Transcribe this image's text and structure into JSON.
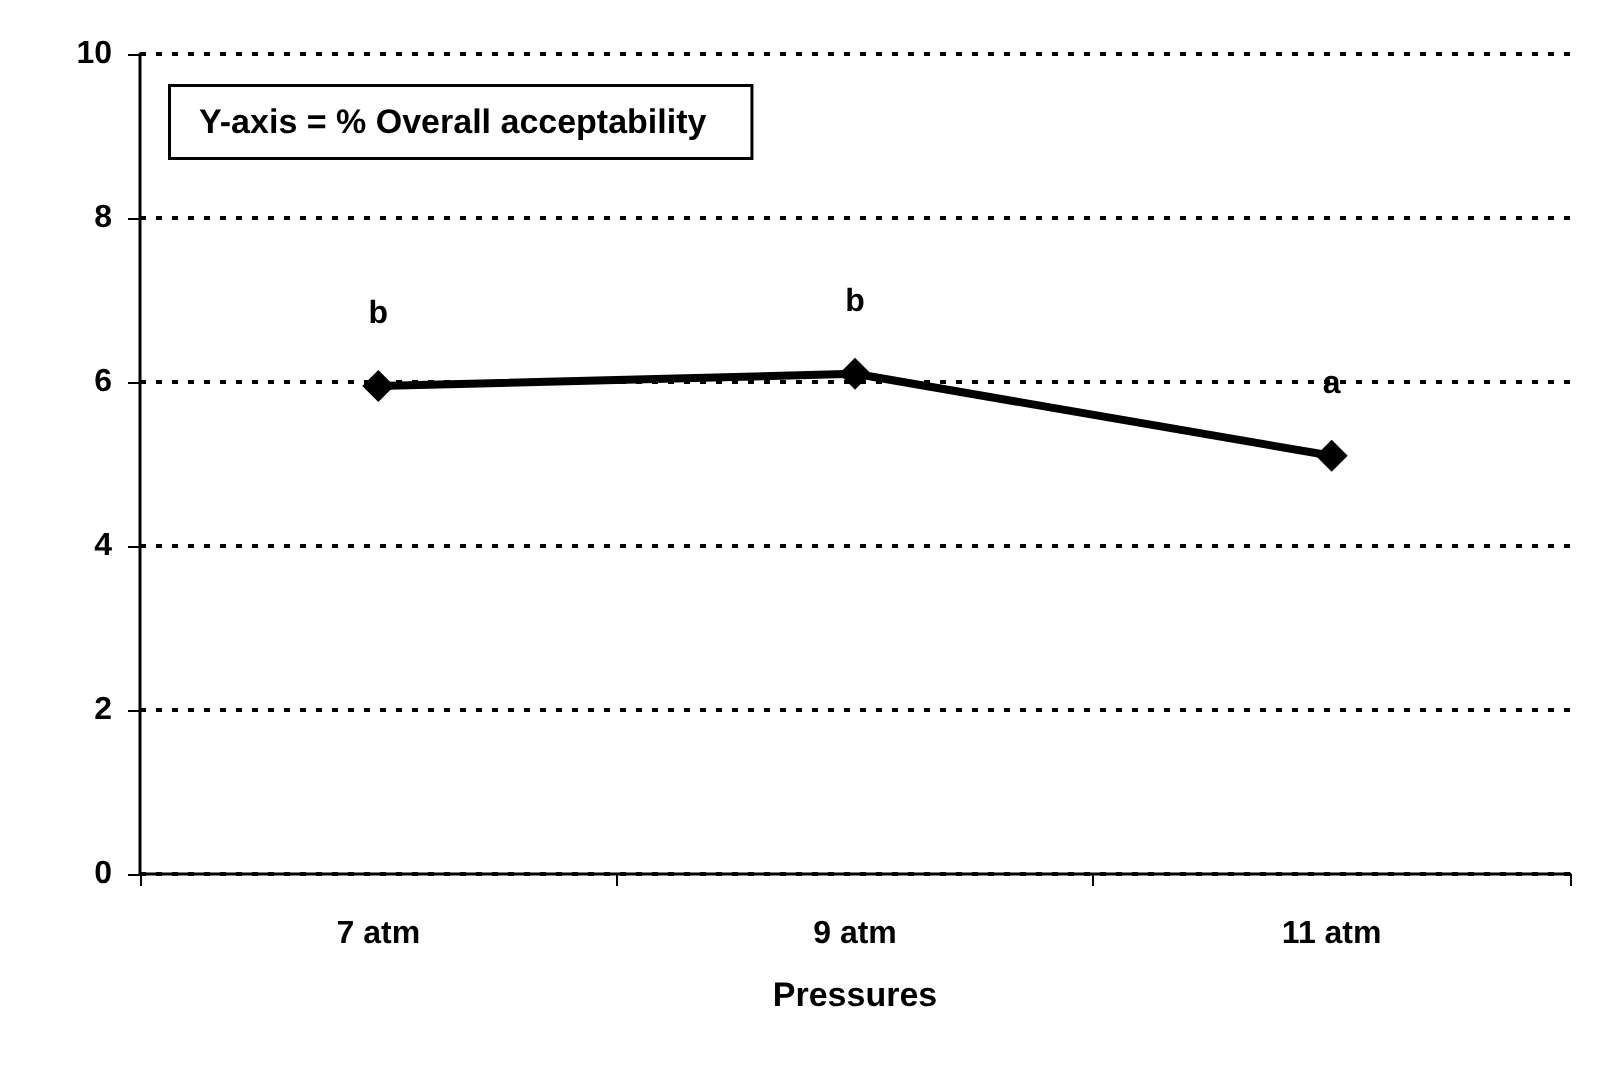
{
  "chart_data": {
    "type": "line",
    "xlabel": "Pressures",
    "categories": [
      "7 atm",
      "9 atm",
      "11 atm"
    ],
    "series": [
      {
        "color": "#000000",
        "values": [
          5.95,
          6.1,
          5.1
        ]
      }
    ],
    "ylim": [
      0,
      10
    ],
    "yticks": [
      0,
      2,
      4,
      6,
      8,
      10
    ],
    "grid": "y",
    "marker": "diamond",
    "line_style": "solid",
    "annotations": [
      "Y-axis = % Overall acceptability",
      {
        "text": "b",
        "x": "7 atm",
        "y": 5.95
      },
      {
        "text": "b",
        "x": "9 atm",
        "y": 6.1
      },
      {
        "text": "a",
        "x": "11 atm",
        "y": 5.1
      }
    ]
  }
}
